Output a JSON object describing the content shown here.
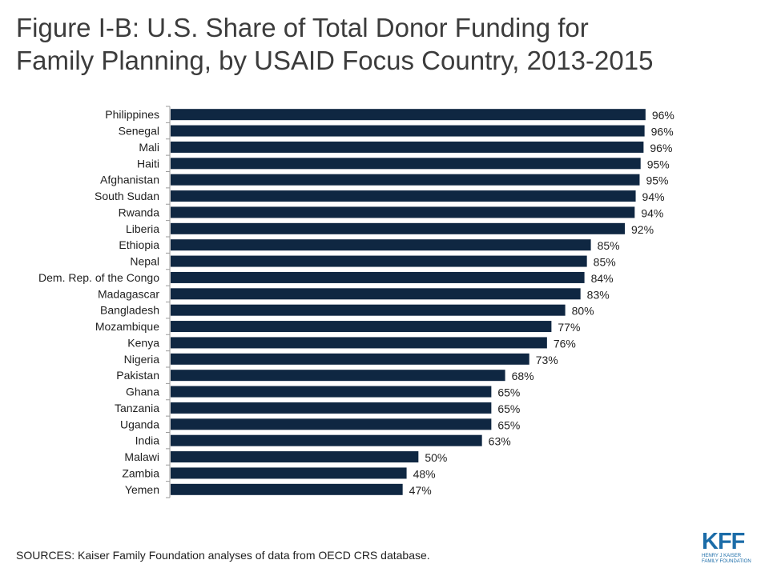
{
  "title": {
    "line1": "Figure I-B: U.S. Share of Total Donor Funding for",
    "line2": "Family Planning, by USAID Focus Country, 2013-2015"
  },
  "chart_data": {
    "type": "bar",
    "orientation": "horizontal",
    "title": "Figure I-B: U.S. Share of Total Donor Funding for Family Planning, by USAID Focus Country, 2013-2015",
    "categories": [
      "Philippines",
      "Senegal",
      "Mali",
      "Haiti",
      "Afghanistan",
      "South Sudan",
      "Rwanda",
      "Liberia",
      "Ethiopia",
      "Nepal",
      "Dem. Rep. of the Congo",
      "Madagascar",
      "Bangladesh",
      "Mozambique",
      "Kenya",
      "Nigeria",
      "Pakistan",
      "Ghana",
      "Tanzania",
      "Uganda",
      "India",
      "Malawi",
      "Zambia",
      "Yemen"
    ],
    "values": [
      96.4,
      96.2,
      96.0,
      95.4,
      95.2,
      94.4,
      94.2,
      92.2,
      85.3,
      84.5,
      84.0,
      83.2,
      80.1,
      77.3,
      76.4,
      72.8,
      67.9,
      65.1,
      65.1,
      65.1,
      63.2,
      50.3,
      47.9,
      47.1
    ],
    "labels": [
      "96%",
      "96%",
      "96%",
      "95%",
      "95%",
      "94%",
      "94%",
      "92%",
      "85%",
      "85%",
      "84%",
      "83%",
      "80%",
      "77%",
      "76%",
      "73%",
      "68%",
      "65%",
      "65%",
      "65%",
      "63%",
      "50%",
      "48%",
      "47%"
    ],
    "xlim": [
      0,
      100
    ],
    "grid": false,
    "bar_color": "#0f2742"
  },
  "source": "SOURCES: Kaiser Family Foundation analyses of data from OECD CRS database.",
  "logo": {
    "mark": "KFF",
    "line1": "HENRY J KAISER",
    "line2": "FAMILY FOUNDATION",
    "color": "#1b6ca8"
  }
}
